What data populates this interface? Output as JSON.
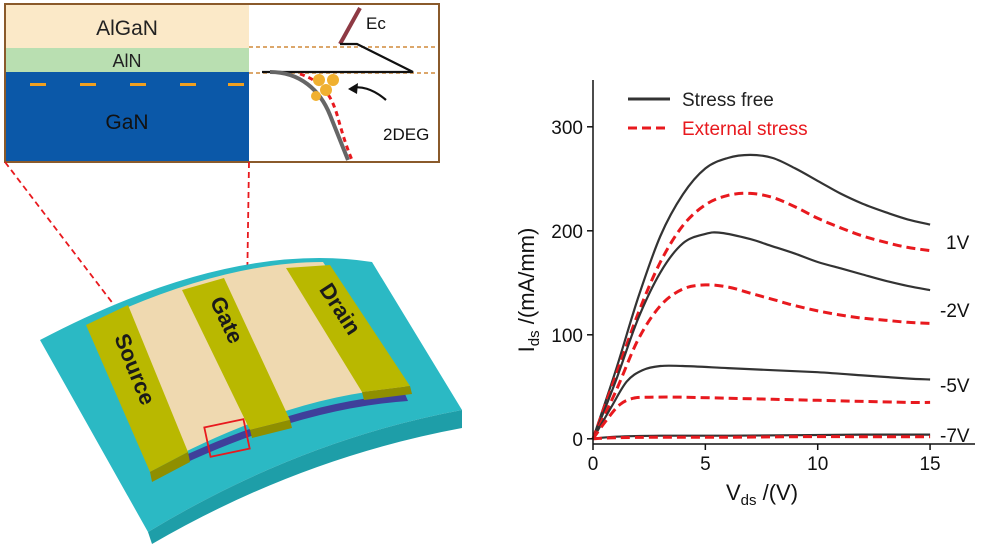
{
  "inset": {
    "layers": {
      "algan": "AlGaN",
      "aln": "AlN",
      "gan": "GaN"
    },
    "band_labels": {
      "ec": "Ec",
      "twodeg": "2DEG"
    },
    "colors": {
      "algan": "#fbe9c8",
      "aln": "#b9dfb1",
      "gan": "#0b58a8",
      "frame": "#8a5a2b",
      "stress_free": "#333333",
      "stress": "#e8191e"
    }
  },
  "device": {
    "electrodes": {
      "source": "Source",
      "gate": "Gate",
      "drain": "Drain"
    },
    "colors": {
      "substrate": "#2bb9c4",
      "channel": "#efd9b0",
      "electrode": "#b9b800",
      "stripe": "#3f3f9a"
    }
  },
  "chart_data": {
    "type": "line",
    "xlabel_main": "V",
    "xlabel_sub": "ds",
    "xlabel_unit": " /(V)",
    "ylabel_main": "I",
    "ylabel_sub": "ds",
    "ylabel_unit": " /(mA/mm)",
    "xlim": [
      0,
      17
    ],
    "ylim": [
      -5,
      345
    ],
    "xticks": [
      0,
      5,
      10,
      15
    ],
    "yticks": [
      0,
      100,
      200,
      300
    ],
    "legend": [
      "Stress free",
      "External stress"
    ],
    "legend_position": "top-left",
    "gate_labels": [
      "1V",
      "-2V",
      "-5V",
      "-7V"
    ],
    "series": [
      {
        "name": "Stress free",
        "gate": "1V",
        "style": "solid",
        "x": [
          0,
          1,
          2,
          3,
          4,
          5,
          6,
          7,
          8,
          9,
          10,
          11,
          12,
          13,
          14,
          15
        ],
        "y": [
          0,
          65,
          135,
          195,
          235,
          260,
          270,
          273,
          270,
          260,
          248,
          236,
          226,
          218,
          211,
          206
        ]
      },
      {
        "name": "External stress",
        "gate": "1V",
        "style": "dashed",
        "x": [
          0,
          1,
          2,
          3,
          4,
          5,
          6,
          7,
          8,
          9,
          10,
          11,
          12,
          13,
          14,
          15
        ],
        "y": [
          0,
          60,
          120,
          170,
          205,
          225,
          234,
          236,
          232,
          223,
          212,
          203,
          195,
          189,
          184,
          181
        ]
      },
      {
        "name": "Stress free",
        "gate": "-2V",
        "style": "solid",
        "x": [
          0,
          1,
          2,
          3,
          4,
          5,
          5.7,
          7,
          8,
          9,
          10,
          11,
          12,
          13,
          14,
          15
        ],
        "y": [
          0,
          55,
          115,
          160,
          188,
          197,
          198,
          192,
          185,
          178,
          170,
          164,
          158,
          152,
          147,
          143
        ]
      },
      {
        "name": "External stress",
        "gate": "-2V",
        "style": "dashed",
        "x": [
          0,
          1,
          2,
          3,
          4,
          5,
          6,
          7,
          8,
          9,
          10,
          11,
          12,
          13,
          14,
          15
        ],
        "y": [
          0,
          45,
          95,
          128,
          144,
          148,
          146,
          140,
          134,
          128,
          123,
          119,
          116,
          114,
          112,
          111
        ]
      },
      {
        "name": "Stress free",
        "gate": "-5V",
        "style": "solid",
        "x": [
          0,
          0.8,
          1.5,
          2.2,
          3,
          4,
          6,
          8,
          10,
          12,
          14,
          15
        ],
        "y": [
          0,
          30,
          55,
          66,
          70,
          70,
          68,
          66,
          64,
          61,
          58,
          57
        ]
      },
      {
        "name": "External stress",
        "gate": "-5V",
        "style": "dashed",
        "x": [
          0,
          0.6,
          1.2,
          1.8,
          2.5,
          4,
          6,
          8,
          10,
          12,
          14,
          15
        ],
        "y": [
          0,
          18,
          33,
          39,
          40,
          40,
          39,
          38,
          37,
          36,
          35,
          35
        ]
      },
      {
        "name": "Stress free",
        "gate": "-7V",
        "style": "solid",
        "x": [
          0,
          1,
          3,
          6,
          9,
          12,
          15
        ],
        "y": [
          0,
          2,
          3,
          3,
          3.5,
          4,
          4
        ]
      },
      {
        "name": "External stress",
        "gate": "-7V",
        "style": "dashed",
        "x": [
          0,
          1,
          3,
          6,
          9,
          12,
          15
        ],
        "y": [
          0,
          1,
          1.5,
          1.5,
          2,
          2,
          2
        ]
      }
    ]
  }
}
